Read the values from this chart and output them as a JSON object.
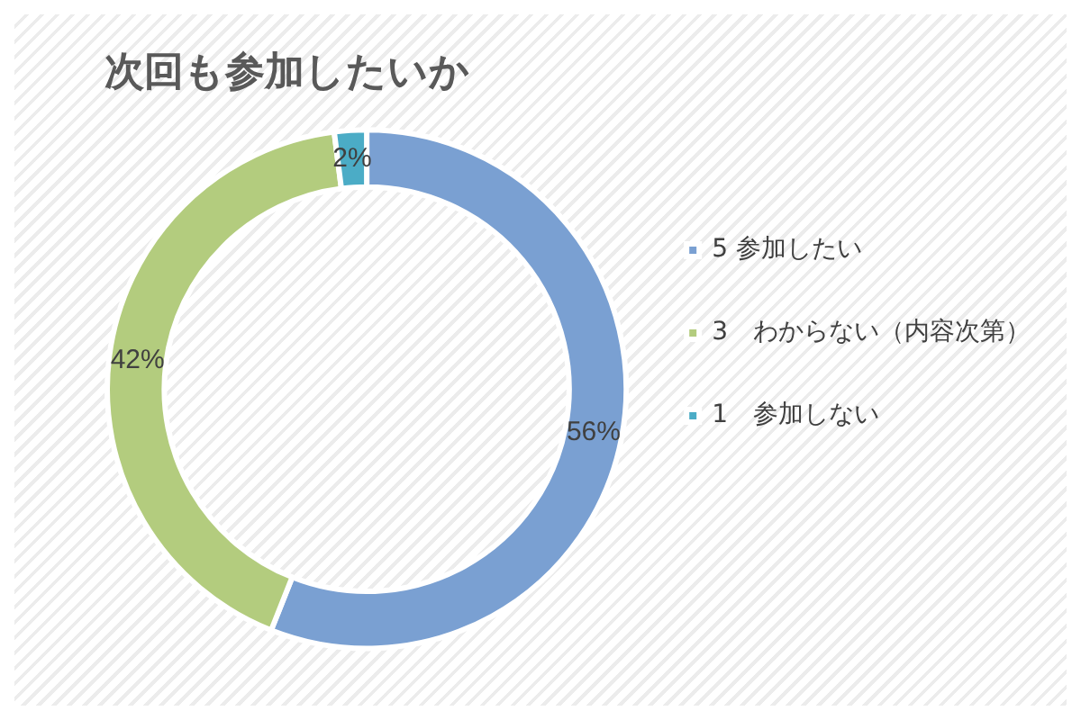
{
  "chart_data": {
    "type": "donut",
    "title": "次回も参加したいか",
    "categories": [
      "5 参加したい",
      "3　わからない（内容次第）",
      "1　参加しない"
    ],
    "values": [
      56,
      42,
      2
    ],
    "value_labels": [
      "56%",
      "42%",
      "2%"
    ],
    "colors": [
      "#7aa0d2",
      "#b3cc7e",
      "#4bacc6"
    ],
    "legend": "right"
  }
}
